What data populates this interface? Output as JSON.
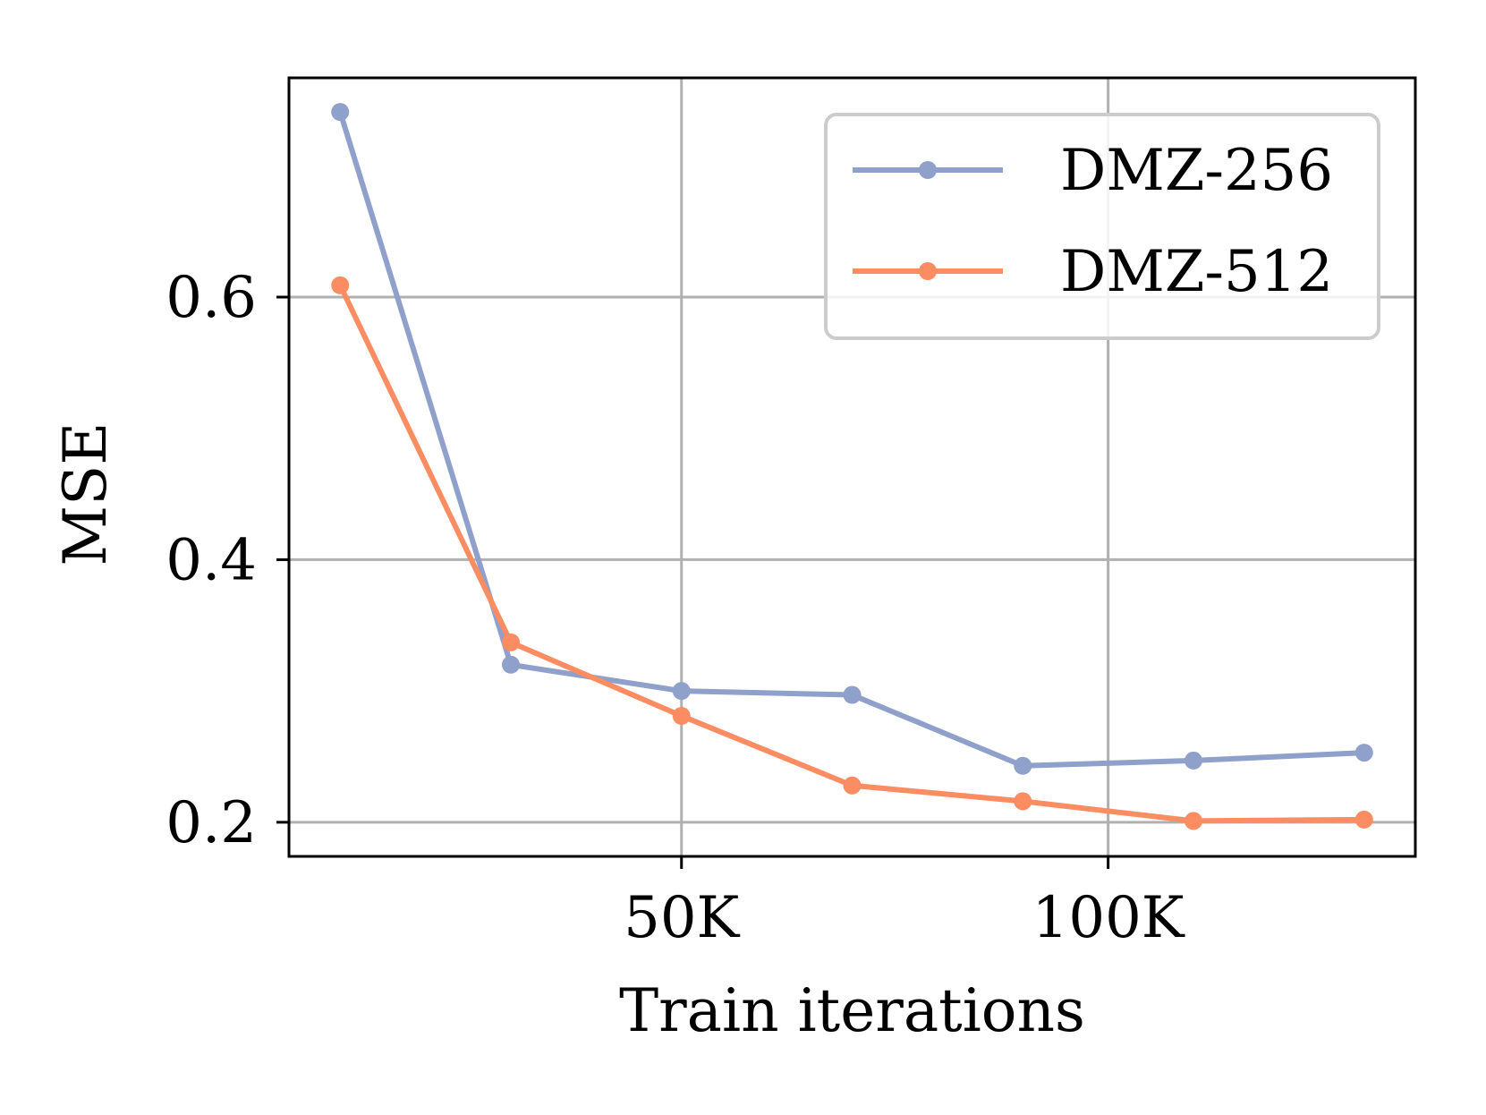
{
  "chart_data": {
    "type": "line",
    "title": "",
    "xlabel": "Train iterations",
    "ylabel": "MSE",
    "x": [
      10000,
      30000,
      50000,
      70000,
      90000,
      110000,
      130000
    ],
    "xlim": [
      4000,
      136000
    ],
    "ylim": [
      0.174,
      0.767
    ],
    "xticks": [
      50000,
      100000
    ],
    "xtick_labels": [
      "50K",
      "100K"
    ],
    "yticks": [
      0.2,
      0.4,
      0.6
    ],
    "ytick_labels": [
      "0.2",
      "0.4",
      "0.6"
    ],
    "grid": true,
    "legend_position": "top-right",
    "series": [
      {
        "name": "DMZ-256",
        "color": "#8fa0cb",
        "marker": "circle",
        "values": [
          0.741,
          0.32,
          0.3,
          0.297,
          0.243,
          0.247,
          0.253
        ]
      },
      {
        "name": "DMZ-512",
        "color": "#fc8d62",
        "marker": "circle",
        "values": [
          0.609,
          0.337,
          0.281,
          0.228,
          0.216,
          0.201,
          0.202
        ]
      }
    ]
  }
}
